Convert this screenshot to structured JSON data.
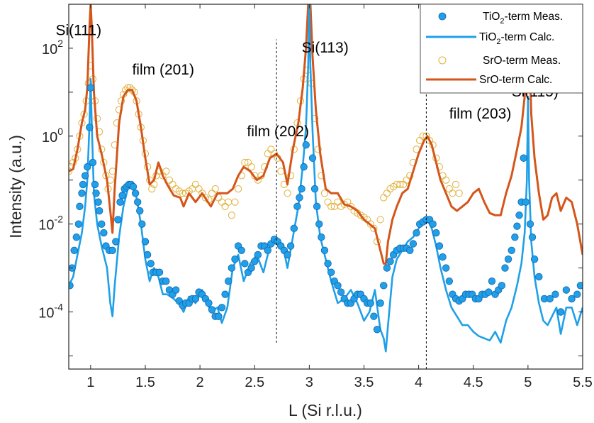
{
  "chart_data": {
    "type": "scatter",
    "xlabel": "L (Si r.l.u.)",
    "ylabel": "Intensity (a.u.)",
    "xlim": [
      0.8,
      5.5
    ],
    "ylim_log10": [
      -5.3,
      3.0
    ],
    "log_y": true,
    "x_ticks": [
      1,
      1.5,
      2,
      2.5,
      3,
      3.5,
      4,
      4.5,
      5,
      5.5
    ],
    "x_tick_labels": [
      "1",
      "1.5",
      "2",
      "2.5",
      "3",
      "3.5",
      "4",
      "4.5",
      "5",
      "5.5"
    ],
    "y_ticks_exponent": [
      2,
      0,
      -2,
      -4
    ],
    "y_tick_base": "10",
    "grid": false,
    "legend_position": "top-right",
    "colors": {
      "tio2": "#1fa0e8",
      "tio2_marker_edge": "#1565b0",
      "sro_meas": "#e0b13a",
      "sro_calc": "#d4561a",
      "axes": "#262626"
    },
    "legend": [
      {
        "prefix": "TiO",
        "sub": "2",
        "suffix": "-term Meas.",
        "kind": "filled-marker"
      },
      {
        "prefix": "TiO",
        "sub": "2",
        "suffix": "-term Calc.",
        "kind": "line"
      },
      {
        "prefix": "SrO-term Meas.",
        "sub": "",
        "suffix": "",
        "kind": "open-marker"
      },
      {
        "prefix": "SrO-term Calc.",
        "sub": "",
        "suffix": "",
        "kind": "line"
      }
    ],
    "annotations": [
      {
        "text": "Si(111)",
        "x": 0.68,
        "log10y": 2.3
      },
      {
        "text": "film (201)",
        "x": 1.38,
        "log10y": 1.4
      },
      {
        "text": "Si(113)",
        "x": 2.93,
        "log10y": 1.9
      },
      {
        "text": "film (202)",
        "x": 2.43,
        "log10y": 0.0
      },
      {
        "text": "film (203)",
        "x": 4.28,
        "log10y": 0.4
      },
      {
        "text": "Si(115)",
        "x": 4.85,
        "log10y": 0.9
      }
    ],
    "reference_lines": [
      {
        "x": 2.7,
        "log10y_from": -4.7,
        "log10y_to": 2.2
      },
      {
        "x": 4.07,
        "log10y_from": -5.3,
        "log10y_to": 1.3
      }
    ],
    "series": [
      {
        "name": "TiO2-term Calc.",
        "role": "tio2_calc",
        "x": [
          0.8,
          0.84,
          0.88,
          0.92,
          0.95,
          0.97,
          0.99,
          1.0,
          1.01,
          1.03,
          1.06,
          1.1,
          1.15,
          1.18,
          1.2,
          1.22,
          1.26,
          1.3,
          1.34,
          1.38,
          1.42,
          1.46,
          1.5,
          1.54,
          1.58,
          1.62,
          1.66,
          1.7,
          1.76,
          1.82,
          1.85,
          1.9,
          1.96,
          2.02,
          2.1,
          2.16,
          2.2,
          2.25,
          2.3,
          2.35,
          2.4,
          2.46,
          2.52,
          2.58,
          2.64,
          2.7,
          2.76,
          2.8,
          2.85,
          2.9,
          2.94,
          2.97,
          2.99,
          3.0,
          3.01,
          3.03,
          3.06,
          3.1,
          3.15,
          3.2,
          3.26,
          3.32,
          3.38,
          3.44,
          3.5,
          3.55,
          3.6,
          3.65,
          3.68,
          3.7,
          3.72,
          3.76,
          3.8,
          3.85,
          3.9,
          3.95,
          4.0,
          4.05,
          4.08,
          4.12,
          4.16,
          4.2,
          4.25,
          4.3,
          4.35,
          4.4,
          4.45,
          4.5,
          4.55,
          4.6,
          4.65,
          4.7,
          4.75,
          4.8,
          4.85,
          4.9,
          4.94,
          4.97,
          4.99,
          5.0,
          5.01,
          5.03,
          5.06,
          5.1,
          5.14,
          5.18,
          5.22,
          5.26,
          5.3,
          5.35,
          5.4,
          5.45,
          5.5
        ],
        "log10y": [
          -3.4,
          -3.2,
          -2.7,
          -2.2,
          -1.6,
          -1.0,
          0.3,
          1.3,
          0.3,
          -1.3,
          -2.0,
          -2.5,
          -3.0,
          -3.8,
          -4.1,
          -3.4,
          -2.3,
          -1.6,
          -1.2,
          -1.15,
          -1.4,
          -2.0,
          -2.8,
          -3.3,
          -3.0,
          -3.2,
          -3.6,
          -3.6,
          -3.7,
          -3.85,
          -4.0,
          -3.65,
          -3.8,
          -3.5,
          -4.0,
          -3.9,
          -4.25,
          -3.9,
          -3.0,
          -2.7,
          -3.3,
          -2.9,
          -2.7,
          -3.1,
          -2.5,
          -2.3,
          -2.5,
          -3.0,
          -2.3,
          -1.6,
          -0.7,
          0.2,
          1.6,
          3.0,
          1.6,
          0.1,
          -1.5,
          -2.3,
          -2.8,
          -3.3,
          -3.8,
          -3.7,
          -3.5,
          -3.8,
          -4.2,
          -4.0,
          -3.5,
          -4.4,
          -4.6,
          -4.9,
          -4.3,
          -3.2,
          -2.8,
          -2.6,
          -2.4,
          -2.3,
          -2.1,
          -1.95,
          -1.9,
          -2.1,
          -2.5,
          -3.0,
          -3.5,
          -3.9,
          -4.1,
          -4.3,
          -4.3,
          -4.45,
          -4.55,
          -4.6,
          -4.65,
          -4.45,
          -4.7,
          -4.2,
          -3.9,
          -3.4,
          -2.9,
          -2.2,
          -1.0,
          0.9,
          -1.0,
          -2.4,
          -3.2,
          -3.8,
          -4.2,
          -4.3,
          -4.1,
          -3.9,
          -4.5,
          -3.9,
          -3.9,
          -4.3,
          -3.9
        ]
      },
      {
        "name": "SrO-term Calc.",
        "role": "sro_calc",
        "x": [
          0.8,
          0.84,
          0.88,
          0.92,
          0.95,
          0.97,
          0.99,
          1.0,
          1.01,
          1.03,
          1.06,
          1.1,
          1.15,
          1.18,
          1.2,
          1.22,
          1.26,
          1.3,
          1.34,
          1.38,
          1.42,
          1.46,
          1.5,
          1.54,
          1.58,
          1.62,
          1.66,
          1.7,
          1.76,
          1.82,
          1.85,
          1.9,
          1.96,
          2.02,
          2.1,
          2.16,
          2.2,
          2.25,
          2.3,
          2.35,
          2.4,
          2.46,
          2.52,
          2.58,
          2.64,
          2.7,
          2.76,
          2.8,
          2.85,
          2.9,
          2.94,
          2.97,
          2.99,
          3.0,
          3.01,
          3.03,
          3.06,
          3.1,
          3.15,
          3.2,
          3.26,
          3.32,
          3.38,
          3.44,
          3.5,
          3.55,
          3.6,
          3.65,
          3.68,
          3.7,
          3.72,
          3.76,
          3.8,
          3.85,
          3.9,
          3.95,
          4.0,
          4.05,
          4.08,
          4.12,
          4.16,
          4.2,
          4.25,
          4.3,
          4.35,
          4.4,
          4.45,
          4.5,
          4.55,
          4.6,
          4.65,
          4.7,
          4.75,
          4.8,
          4.85,
          4.9,
          4.94,
          4.97,
          4.99,
          5.0,
          5.01,
          5.03,
          5.06,
          5.1,
          5.14,
          5.18,
          5.22,
          5.26,
          5.3,
          5.35,
          5.4,
          5.45,
          5.5
        ],
        "log10y": [
          -0.8,
          -0.75,
          -0.3,
          0.3,
          0.6,
          1.1,
          2.5,
          3.0,
          2.5,
          1.0,
          0.0,
          -0.4,
          -1.0,
          -1.7,
          -2.2,
          -1.2,
          0.3,
          0.9,
          1.05,
          1.05,
          0.8,
          0.2,
          -0.5,
          -1.1,
          -1.0,
          -0.6,
          -0.9,
          -1.1,
          -1.35,
          -1.4,
          -1.6,
          -1.3,
          -1.5,
          -1.3,
          -1.6,
          -1.3,
          -1.3,
          -1.3,
          -1.2,
          -0.9,
          -0.7,
          -0.8,
          -1.0,
          -0.9,
          -0.5,
          -0.4,
          -0.6,
          -1.1,
          -0.3,
          0.3,
          1.1,
          2.0,
          3.0,
          3.0,
          3.0,
          1.8,
          0.6,
          -0.4,
          -1.2,
          -1.3,
          -1.3,
          -1.55,
          -1.6,
          -1.7,
          -1.9,
          -2.0,
          -2.1,
          -2.6,
          -2.9,
          -2.9,
          -2.4,
          -1.9,
          -1.6,
          -1.3,
          -1.2,
          -0.8,
          -0.4,
          -0.1,
          0.0,
          -0.2,
          -0.6,
          -1.0,
          -1.3,
          -1.6,
          -1.7,
          -1.6,
          -1.5,
          -1.3,
          -1.2,
          -1.5,
          -1.75,
          -1.8,
          -1.8,
          -1.3,
          -0.9,
          -0.3,
          0.2,
          0.9,
          2.2,
          3.0,
          2.2,
          0.5,
          -0.5,
          -1.3,
          -1.9,
          -1.8,
          -1.4,
          -1.3,
          -1.7,
          -1.4,
          -1.5,
          -2.0,
          -2.7
        ]
      },
      {
        "name": "TiO2-term Meas.",
        "role": "tio2_meas",
        "x": [
          0.81,
          0.83,
          0.85,
          0.87,
          0.89,
          0.9,
          0.92,
          0.93,
          0.95,
          0.97,
          0.99,
          1.0,
          1.02,
          1.04,
          1.05,
          1.07,
          1.08,
          1.1,
          1.12,
          1.14,
          1.17,
          1.2,
          1.23,
          1.25,
          1.27,
          1.29,
          1.31,
          1.33,
          1.35,
          1.37,
          1.39,
          1.41,
          1.43,
          1.45,
          1.47,
          1.5,
          1.52,
          1.55,
          1.57,
          1.6,
          1.63,
          1.66,
          1.69,
          1.72,
          1.75,
          1.78,
          1.81,
          1.84,
          1.87,
          1.9,
          1.93,
          1.96,
          1.99,
          2.02,
          2.05,
          2.08,
          2.11,
          2.14,
          2.17,
          2.2,
          2.23,
          2.26,
          2.29,
          2.32,
          2.35,
          2.38,
          2.41,
          2.44,
          2.47,
          2.5,
          2.53,
          2.56,
          2.59,
          2.62,
          2.65,
          2.68,
          2.71,
          2.74,
          2.77,
          2.8,
          2.83,
          2.86,
          2.89,
          2.91,
          2.93,
          2.95,
          2.97,
          3.03,
          3.05,
          3.07,
          3.09,
          3.11,
          3.14,
          3.17,
          3.2,
          3.23,
          3.26,
          3.29,
          3.32,
          3.35,
          3.38,
          3.41,
          3.44,
          3.47,
          3.5,
          3.53,
          3.56,
          3.59,
          3.62,
          3.65,
          3.68,
          3.71,
          3.74,
          3.77,
          3.8,
          3.83,
          3.86,
          3.89,
          3.92,
          3.95,
          3.98,
          4.01,
          4.04,
          4.07,
          4.1,
          4.13,
          4.16,
          4.19,
          4.22,
          4.25,
          4.28,
          4.31,
          4.34,
          4.37,
          4.4,
          4.43,
          4.46,
          4.49,
          4.52,
          4.55,
          4.58,
          4.61,
          4.64,
          4.67,
          4.7,
          4.73,
          4.76,
          4.79,
          4.82,
          4.85,
          4.88,
          4.9,
          4.92,
          4.94,
          4.96,
          4.98,
          5.02,
          5.04,
          5.06,
          5.1,
          5.15,
          5.2,
          5.25,
          5.3,
          5.35,
          5.4,
          5.45,
          5.48,
          5.5
        ],
        "log10y": [
          -3.4,
          -3.0,
          -2.6,
          -2.3,
          -2.0,
          -1.6,
          -1.3,
          -1.1,
          -0.9,
          -0.7,
          0.2,
          1.1,
          -0.6,
          -1.1,
          -1.3,
          -1.5,
          -1.7,
          -2.0,
          -2.2,
          -2.5,
          -2.6,
          -2.6,
          -2.4,
          -1.9,
          -1.5,
          -1.35,
          -1.2,
          -1.15,
          -1.1,
          -1.1,
          -1.15,
          -1.3,
          -1.5,
          -1.7,
          -2.0,
          -2.4,
          -2.7,
          -2.9,
          -3.1,
          -3.1,
          -3.1,
          -3.3,
          -3.3,
          -3.5,
          -3.6,
          -3.5,
          -3.75,
          -3.85,
          -3.8,
          -3.8,
          -3.7,
          -3.7,
          -3.55,
          -3.6,
          -3.7,
          -3.8,
          -3.95,
          -4.1,
          -4.1,
          -3.9,
          -3.6,
          -3.3,
          -3.0,
          -2.8,
          -2.5,
          -2.6,
          -2.9,
          -3.1,
          -3.0,
          -2.85,
          -2.7,
          -2.5,
          -2.5,
          -2.6,
          -2.45,
          -2.35,
          -2.4,
          -2.5,
          -2.6,
          -2.7,
          -2.5,
          -2.1,
          -1.6,
          -1.4,
          -1.2,
          -0.7,
          -0.2,
          -0.5,
          -1.2,
          -1.6,
          -2.0,
          -2.3,
          -2.6,
          -2.9,
          -3.1,
          -3.3,
          -3.4,
          -3.55,
          -3.7,
          -3.8,
          -3.8,
          -3.7,
          -3.6,
          -3.6,
          -3.7,
          -3.8,
          -3.8,
          -4.1,
          -4.4,
          -3.8,
          -3.4,
          -3.0,
          -2.85,
          -2.7,
          -2.6,
          -2.55,
          -2.55,
          -2.55,
          -2.6,
          -2.45,
          -2.2,
          -2.0,
          -1.95,
          -1.9,
          -1.9,
          -2.0,
          -2.2,
          -2.5,
          -2.75,
          -3.0,
          -3.3,
          -3.6,
          -3.7,
          -3.75,
          -3.7,
          -3.6,
          -3.6,
          -3.6,
          -3.7,
          -3.7,
          -3.6,
          -3.6,
          -3.55,
          -3.3,
          -3.6,
          -3.5,
          -3.4,
          -3.0,
          -2.8,
          -2.6,
          -2.3,
          -2.05,
          -1.8,
          -1.5,
          -0.5,
          -1.5,
          -2.0,
          -2.3,
          -2.8,
          -3.2,
          -3.7,
          -3.7,
          -3.6,
          -4.0,
          -3.5,
          -3.7,
          -3.6,
          -3.4
        ]
      },
      {
        "name": "SrO-term Meas.",
        "role": "sro_meas",
        "x": [
          0.8,
          0.82,
          0.84,
          0.86,
          0.88,
          0.9,
          0.92,
          0.94,
          0.96,
          0.98,
          1.0,
          1.02,
          1.04,
          1.06,
          1.08,
          1.1,
          1.12,
          1.14,
          1.16,
          1.18,
          1.2,
          1.22,
          1.24,
          1.26,
          1.28,
          1.3,
          1.32,
          1.34,
          1.36,
          1.38,
          1.4,
          1.42,
          1.44,
          1.46,
          1.48,
          1.5,
          1.52,
          1.54,
          1.56,
          1.58,
          1.6,
          1.63,
          1.66,
          1.69,
          1.72,
          1.75,
          1.78,
          1.81,
          1.84,
          1.87,
          1.9,
          1.93,
          1.96,
          1.99,
          2.02,
          2.05,
          2.08,
          2.11,
          2.14,
          2.17,
          2.2,
          2.23,
          2.26,
          2.29,
          2.32,
          2.35,
          2.38,
          2.41,
          2.44,
          2.47,
          2.5,
          2.53,
          2.56,
          2.59,
          2.62,
          2.65,
          2.68,
          2.71,
          2.74,
          2.77,
          2.8,
          2.83,
          2.86,
          2.89,
          2.92,
          2.95,
          2.98,
          3.02,
          3.05,
          3.08,
          3.11,
          3.14,
          3.17,
          3.2,
          3.23,
          3.26,
          3.29,
          3.32,
          3.35,
          3.38,
          3.41,
          3.44,
          3.47,
          3.5,
          3.53,
          3.56,
          3.59,
          3.62,
          3.65,
          3.68,
          3.71,
          3.74,
          3.77,
          3.8,
          3.83,
          3.86,
          3.89,
          3.92,
          3.95,
          3.98,
          4.01,
          4.04,
          4.07,
          4.1,
          4.13,
          4.16,
          4.19,
          4.22,
          4.25,
          4.28,
          4.31,
          4.34,
          4.37,
          4.4
        ],
        "log10y": [
          -0.8,
          -0.7,
          -0.6,
          -0.5,
          -0.3,
          0.0,
          0.3,
          0.5,
          0.8,
          1.2,
          1.6,
          1.3,
          0.8,
          0.4,
          0.1,
          -0.3,
          -0.6,
          -0.9,
          -1.2,
          -1.0,
          -0.8,
          -0.2,
          0.3,
          0.6,
          0.8,
          0.95,
          1.05,
          1.1,
          1.1,
          1.05,
          1.0,
          0.8,
          0.5,
          0.2,
          -0.1,
          -0.4,
          -0.7,
          -1.0,
          -1.2,
          -1.1,
          -0.9,
          -0.8,
          -0.9,
          -0.8,
          -1.0,
          -1.1,
          -1.2,
          -1.25,
          -1.3,
          -1.3,
          -1.25,
          -1.2,
          -1.1,
          -1.2,
          -1.3,
          -1.4,
          -1.45,
          -1.3,
          -1.2,
          -1.4,
          -1.5,
          -1.6,
          -1.5,
          -1.8,
          -1.5,
          -1.2,
          -0.9,
          -0.6,
          -0.6,
          -0.7,
          -0.9,
          -1.0,
          -0.9,
          -0.7,
          -0.4,
          -0.3,
          -0.4,
          -0.5,
          -0.8,
          -1.1,
          -1.3,
          -0.9,
          -0.3,
          0.3,
          0.8,
          1.3,
          1.5,
          1.2,
          0.4,
          -0.3,
          -0.9,
          -1.3,
          -1.5,
          -1.6,
          -1.6,
          -1.5,
          -1.6,
          -1.55,
          -1.5,
          -1.6,
          -1.7,
          -1.75,
          -1.8,
          -1.85,
          -1.9,
          -2.0,
          -2.1,
          -2.4,
          -1.9,
          -1.4,
          -1.3,
          -1.2,
          -1.15,
          -1.1,
          -1.1,
          -1.1,
          -1.0,
          -0.9,
          -0.6,
          -0.3,
          -0.1,
          0.0,
          0.0,
          -0.1,
          -0.2,
          -0.5,
          -0.7,
          -0.9,
          -1.0,
          -1.2,
          -1.3,
          -1.1,
          -1.3
        ]
      }
    ]
  }
}
